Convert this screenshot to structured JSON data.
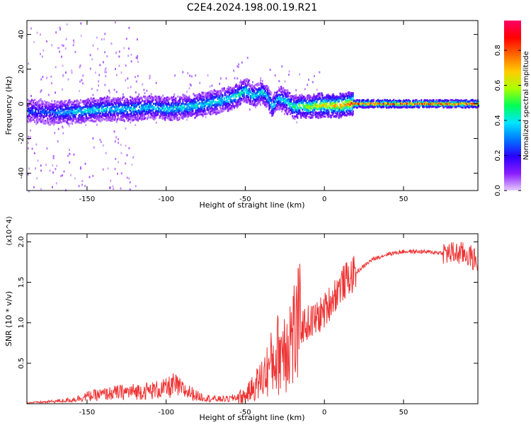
{
  "title": "C2E4.2024.198.00.19.R21",
  "chart_data": [
    {
      "type": "heatmap",
      "xlabel": "Height of straight line (km)",
      "ylabel": "Frequency (Hz)",
      "xlim": [
        -188,
        97
      ],
      "ylim": [
        -50,
        48
      ],
      "x_ticks": [
        -150,
        -100,
        -50,
        0,
        50
      ],
      "y_ticks": [
        -40,
        -20,
        0,
        20,
        40
      ],
      "grid": false,
      "colorbar": {
        "label": "Normalized spectral amplitude",
        "range": [
          0,
          0.97
        ],
        "ticks": [
          0.0,
          0.2,
          0.4,
          0.6,
          0.8
        ],
        "colormap": [
          "#e6ccff",
          "#8a1cff",
          "#2a00ff",
          "#0077ff",
          "#00e6ff",
          "#00ff55",
          "#aaff00",
          "#ffcc00",
          "#ff6600",
          "#ff0000",
          "#ff0066"
        ]
      },
      "ridge": {
        "x": [
          -188,
          -175,
          -165,
          -150,
          -140,
          -130,
          -120,
          -110,
          -100,
          -90,
          -80,
          -70,
          -60,
          -55,
          -50,
          -45,
          -40,
          -37,
          -33,
          -30,
          -25,
          -20,
          -15,
          -10,
          -5,
          0,
          5,
          10,
          15,
          20,
          50,
          97
        ],
        "frequency": [
          -4,
          -5,
          -5,
          -4,
          -3,
          -3,
          -3,
          -2,
          -3,
          -2,
          -1,
          1,
          3,
          5,
          8,
          4,
          7,
          5,
          -2,
          3,
          2,
          -2,
          -1,
          -2,
          -1,
          -1,
          -1,
          -1,
          0,
          0,
          0,
          0
        ],
        "amplitude": [
          0.3,
          0.3,
          0.4,
          0.45,
          0.45,
          0.4,
          0.45,
          0.4,
          0.45,
          0.45,
          0.45,
          0.45,
          0.45,
          0.5,
          0.45,
          0.45,
          0.45,
          0.4,
          0.4,
          0.4,
          0.45,
          0.55,
          0.6,
          0.65,
          0.7,
          0.75,
          0.75,
          0.8,
          0.85,
          0.95,
          0.95,
          0.95
        ]
      }
    },
    {
      "type": "line",
      "xlabel": "Height of straight line (km)",
      "ylabel": "SNR (10 * v/v)",
      "y_multiplier": "(x10^4)",
      "xlim": [
        -188,
        97
      ],
      "ylim": [
        0,
        2.1
      ],
      "x_ticks": [
        -150,
        -100,
        -50,
        0,
        50
      ],
      "y_ticks": [
        0.5,
        1.0,
        1.5,
        2.0
      ],
      "grid": false,
      "color": "#ee3333",
      "series": [
        {
          "x": [
            -188,
            -175,
            -160,
            -150,
            -140,
            -130,
            -120,
            -110,
            -100,
            -95,
            -90,
            -85,
            -80,
            -70,
            -60,
            -50,
            -45,
            -40,
            -35,
            -30,
            -25,
            -20,
            -15,
            -10,
            -5,
            0,
            5,
            10,
            15,
            20,
            25,
            30,
            40,
            50,
            60,
            70,
            80,
            90,
            97
          ],
          "y": [
            0.01,
            0.02,
            0.04,
            0.08,
            0.1,
            0.12,
            0.13,
            0.14,
            0.16,
            0.2,
            0.15,
            0.12,
            0.08,
            0.05,
            0.05,
            0.1,
            0.2,
            0.3,
            0.45,
            0.6,
            0.75,
            0.85,
            0.95,
            1.0,
            1.05,
            1.15,
            1.3,
            1.45,
            1.55,
            1.62,
            1.7,
            1.78,
            1.85,
            1.88,
            1.88,
            1.87,
            1.86,
            1.85,
            1.75
          ]
        }
      ]
    }
  ]
}
